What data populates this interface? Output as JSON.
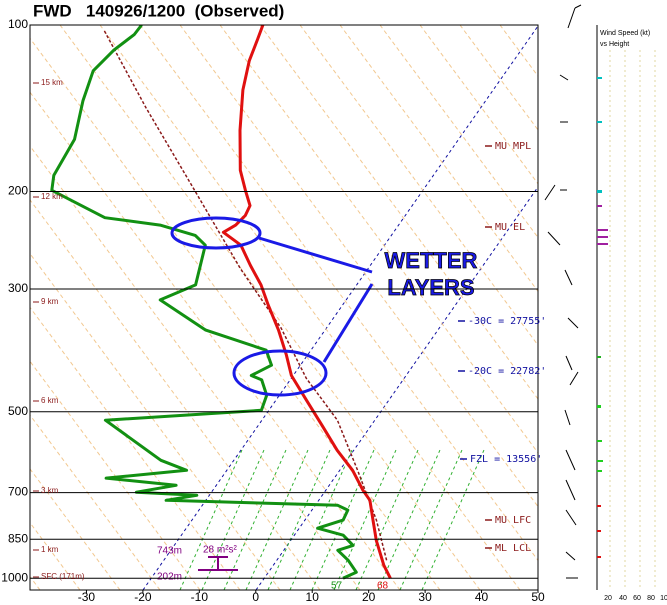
{
  "chart_data": {
    "type": "skewt",
    "title": "FWD   140926/1200  (Observed)",
    "xlim": [
      -40,
      50
    ],
    "xticks": [
      -30,
      -20,
      -10,
      0,
      10,
      20,
      30,
      40,
      50
    ],
    "ylim": [
      1050,
      100
    ],
    "yticks": [
      100,
      200,
      300,
      500,
      700,
      850,
      1000
    ],
    "log_y": true,
    "grid": true,
    "series": [
      {
        "color": "#8b1a1a",
        "pressure": [
          928,
          785,
          638,
          518,
          435,
          353,
          275,
          199,
          141,
          102
        ],
        "values": [
          19.5,
          12.7,
          3.2,
          -6.6,
          -17.3,
          -28.0,
          -42.7,
          -60.4,
          -79.3,
          -96.4
        ]
      },
      {
        "color": "#e01010",
        "pressure": [
          1000,
          947,
          854,
          785,
          723,
          693,
          638,
          587,
          529,
          477,
          430,
          395,
          356,
          321,
          295,
          272,
          250,
          237,
          230,
          221,
          212,
          199,
          183,
          155,
          131,
          116,
          106,
          100
        ],
        "values": [
          22.4,
          19.6,
          15.2,
          12.1,
          9.1,
          6.6,
          2.3,
          -2.9,
          -8.7,
          -14.5,
          -20.3,
          -23.7,
          -28.2,
          -33.1,
          -36.9,
          -41.2,
          -45.4,
          -50.1,
          -48.8,
          -48.3,
          -48.7,
          -51.4,
          -54.8,
          -59.8,
          -64.3,
          -66.8,
          -68.0,
          -68.8
        ]
      },
      {
        "color": "#129012",
        "pressure": [
          1000,
          975,
          928,
          890,
          872,
          836,
          812,
          785,
          753,
          738,
          723,
          708,
          699,
          679,
          659,
          638,
          612,
          518,
          497,
          467,
          438,
          430,
          412,
          387,
          356,
          314,
          295,
          250,
          240,
          230,
          223,
          199,
          187,
          161,
          137,
          121,
          111,
          104,
          100
        ],
        "values": [
          14.0,
          15.6,
          12.7,
          9.6,
          11.7,
          8.7,
          3.3,
          6.8,
          6.4,
          4.0,
          -27.0,
          -22.2,
          -33.3,
          -27.1,
          -40.4,
          -27.1,
          -32.9,
          -47.7,
          -21.3,
          -22.2,
          -25.0,
          -27.4,
          -25.1,
          -27.9,
          -41.1,
          -52.9,
          -48.5,
          -51.7,
          -54.7,
          -62.2,
          -72.9,
          -85.7,
          -87.2,
          -88.0,
          -91.3,
          -93.2,
          -92.1,
          -90.4,
          -90.3
        ]
      }
    ],
    "height_labels": [
      "15 km",
      "12 km",
      "9 km",
      "6 km",
      "3 km",
      "1 km",
      "SFC (171m)"
    ],
    "level_labels": [
      "MU MPL",
      "MU EL",
      "-30C = 27755'",
      "-20C = 22782'",
      "FZL = 13556'",
      "MU LFC",
      "ML LCL"
    ],
    "annotation": [
      "WETTER",
      "LAYERS"
    ],
    "bottom_labels": [
      "743m",
      "28 m²s²",
      "202m",
      "57",
      "68"
    ],
    "wind_panel": {
      "title": [
        "Wind Speed (kt)",
        "vs Height"
      ],
      "ticks": [
        "20",
        "40",
        "60",
        "80",
        "10"
      ]
    }
  }
}
